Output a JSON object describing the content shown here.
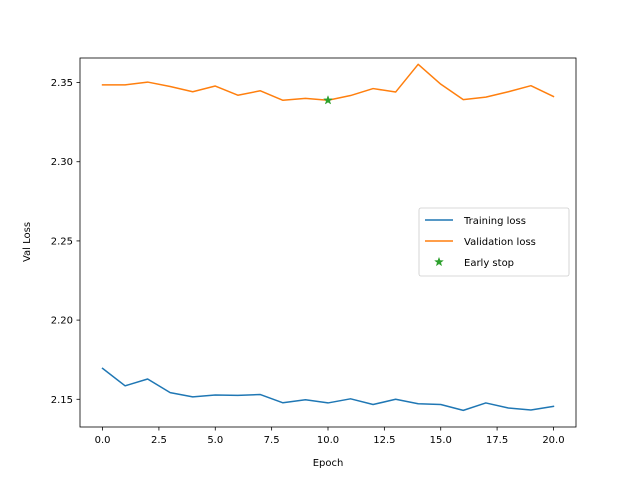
{
  "chart_data": {
    "type": "line",
    "xlabel": "Epoch",
    "ylabel": "Val Loss",
    "xlim": [
      -1.0,
      21.0
    ],
    "ylim": [
      2.1325,
      2.3655
    ],
    "xticks": [
      0.0,
      2.5,
      5.0,
      7.5,
      10.0,
      12.5,
      15.0,
      17.5,
      20.0
    ],
    "xtick_labels": [
      "0.0",
      "2.5",
      "5.0",
      "7.5",
      "10.0",
      "12.5",
      "15.0",
      "17.5",
      "20.0"
    ],
    "yticks": [
      2.15,
      2.2,
      2.25,
      2.3,
      2.35
    ],
    "ytick_labels": [
      "2.15",
      "2.20",
      "2.25",
      "2.30",
      "2.35"
    ],
    "grid": false,
    "legend_position": "center-right",
    "series": [
      {
        "name": "Training loss",
        "color": "#1f77b4",
        "x": [
          0,
          1,
          2,
          3,
          4,
          5,
          6,
          7,
          8,
          9,
          10,
          11,
          12,
          13,
          14,
          15,
          16,
          17,
          18,
          19,
          20
        ],
        "y": [
          2.1695,
          2.1585,
          2.1628,
          2.1542,
          2.1515,
          2.1527,
          2.1525,
          2.153,
          2.1478,
          2.1497,
          2.1477,
          2.1503,
          2.1467,
          2.15,
          2.1472,
          2.1467,
          2.143,
          2.1477,
          2.1445,
          2.1432,
          2.1455
        ]
      },
      {
        "name": "Validation loss",
        "color": "#ff7f0e",
        "x": [
          0,
          1,
          2,
          3,
          4,
          5,
          6,
          7,
          8,
          9,
          10,
          11,
          12,
          13,
          14,
          15,
          16,
          17,
          18,
          19,
          20
        ],
        "y": [
          2.3485,
          2.3485,
          2.3503,
          2.3475,
          2.3442,
          2.3478,
          2.342,
          2.3448,
          2.3388,
          2.34,
          2.3388,
          2.3418,
          2.3462,
          2.344,
          2.3615,
          2.349,
          2.3392,
          2.3408,
          2.3442,
          2.348,
          2.3412
        ]
      }
    ],
    "markers": [
      {
        "name": "Early stop",
        "color": "#2ca02c",
        "symbol": "star",
        "x": 10,
        "y": 2.3388
      }
    ]
  }
}
